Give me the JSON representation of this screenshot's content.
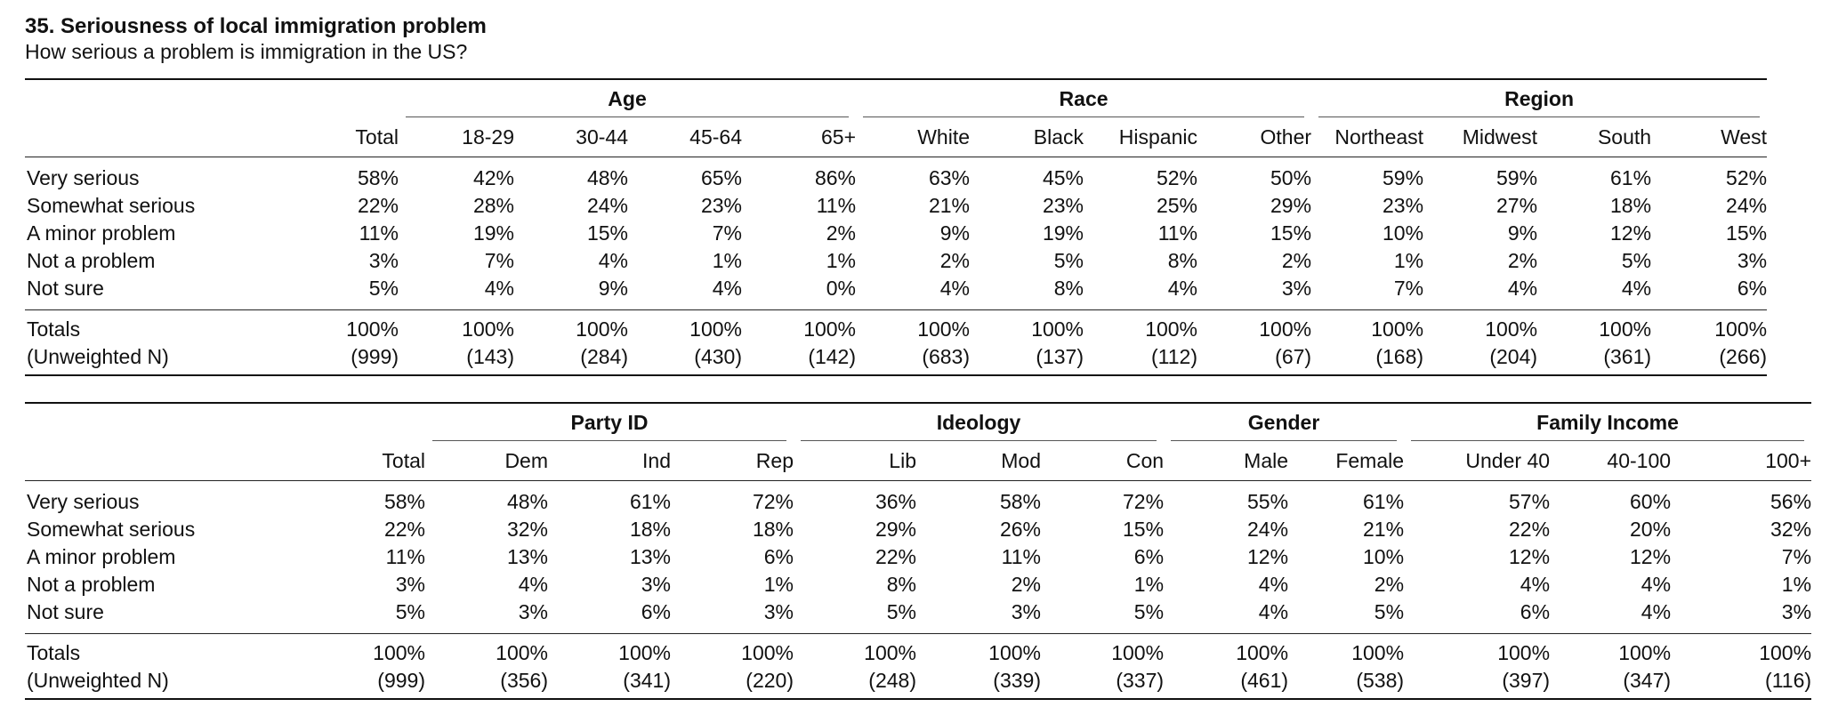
{
  "title": "35. Seriousness of local immigration problem",
  "subtitle": "How serious a problem is immigration in the US?",
  "row_labels": [
    "Very serious",
    "Somewhat serious",
    "A minor problem",
    "Not a problem",
    "Not sure"
  ],
  "totals_label": "Totals",
  "unweighted_label": "(Unweighted N)",
  "tables": [
    {
      "groups": [
        {
          "label": "",
          "span": 1
        },
        {
          "label": "Age",
          "span": 4
        },
        {
          "label": "Race",
          "span": 4
        },
        {
          "label": "Region",
          "span": 4
        }
      ],
      "columns": [
        "Total",
        "18-29",
        "30-44",
        "45-64",
        "65+",
        "White",
        "Black",
        "Hispanic",
        "Other",
        "Northeast",
        "Midwest",
        "South",
        "West"
      ],
      "rows": [
        [
          "58%",
          "42%",
          "48%",
          "65%",
          "86%",
          "63%",
          "45%",
          "52%",
          "50%",
          "59%",
          "59%",
          "61%",
          "52%"
        ],
        [
          "22%",
          "28%",
          "24%",
          "23%",
          "11%",
          "21%",
          "23%",
          "25%",
          "29%",
          "23%",
          "27%",
          "18%",
          "24%"
        ],
        [
          "11%",
          "19%",
          "15%",
          "7%",
          "2%",
          "9%",
          "19%",
          "11%",
          "15%",
          "10%",
          "9%",
          "12%",
          "15%"
        ],
        [
          "3%",
          "7%",
          "4%",
          "1%",
          "1%",
          "2%",
          "5%",
          "8%",
          "2%",
          "1%",
          "2%",
          "5%",
          "3%"
        ],
        [
          "5%",
          "4%",
          "9%",
          "4%",
          "0%",
          "4%",
          "8%",
          "4%",
          "3%",
          "7%",
          "4%",
          "4%",
          "6%"
        ]
      ],
      "totals": [
        "100%",
        "100%",
        "100%",
        "100%",
        "100%",
        "100%",
        "100%",
        "100%",
        "100%",
        "100%",
        "100%",
        "100%",
        "100%"
      ],
      "unweighted": [
        "(999)",
        "(143)",
        "(284)",
        "(430)",
        "(142)",
        "(683)",
        "(137)",
        "(112)",
        "(67)",
        "(168)",
        "(204)",
        "(361)",
        "(266)"
      ]
    },
    {
      "groups": [
        {
          "label": "",
          "span": 1
        },
        {
          "label": "Party ID",
          "span": 3
        },
        {
          "label": "Ideology",
          "span": 3
        },
        {
          "label": "Gender",
          "span": 2
        },
        {
          "label": "Family Income",
          "span": 3
        }
      ],
      "columns": [
        "Total",
        "Dem",
        "Ind",
        "Rep",
        "Lib",
        "Mod",
        "Con",
        "Male",
        "Female",
        "Under 40",
        "40-100",
        "100+"
      ],
      "rows": [
        [
          "58%",
          "48%",
          "61%",
          "72%",
          "36%",
          "58%",
          "72%",
          "55%",
          "61%",
          "57%",
          "60%",
          "56%"
        ],
        [
          "22%",
          "32%",
          "18%",
          "18%",
          "29%",
          "26%",
          "15%",
          "24%",
          "21%",
          "22%",
          "20%",
          "32%"
        ],
        [
          "11%",
          "13%",
          "13%",
          "6%",
          "22%",
          "11%",
          "6%",
          "12%",
          "10%",
          "12%",
          "12%",
          "7%"
        ],
        [
          "3%",
          "4%",
          "3%",
          "1%",
          "8%",
          "2%",
          "1%",
          "4%",
          "2%",
          "4%",
          "4%",
          "1%"
        ],
        [
          "5%",
          "3%",
          "6%",
          "3%",
          "5%",
          "3%",
          "5%",
          "4%",
          "5%",
          "6%",
          "4%",
          "3%"
        ]
      ],
      "totals": [
        "100%",
        "100%",
        "100%",
        "100%",
        "100%",
        "100%",
        "100%",
        "100%",
        "100%",
        "100%",
        "100%",
        "100%"
      ],
      "unweighted": [
        "(999)",
        "(356)",
        "(341)",
        "(220)",
        "(248)",
        "(339)",
        "(337)",
        "(461)",
        "(538)",
        "(397)",
        "(347)",
        "(116)"
      ]
    }
  ]
}
